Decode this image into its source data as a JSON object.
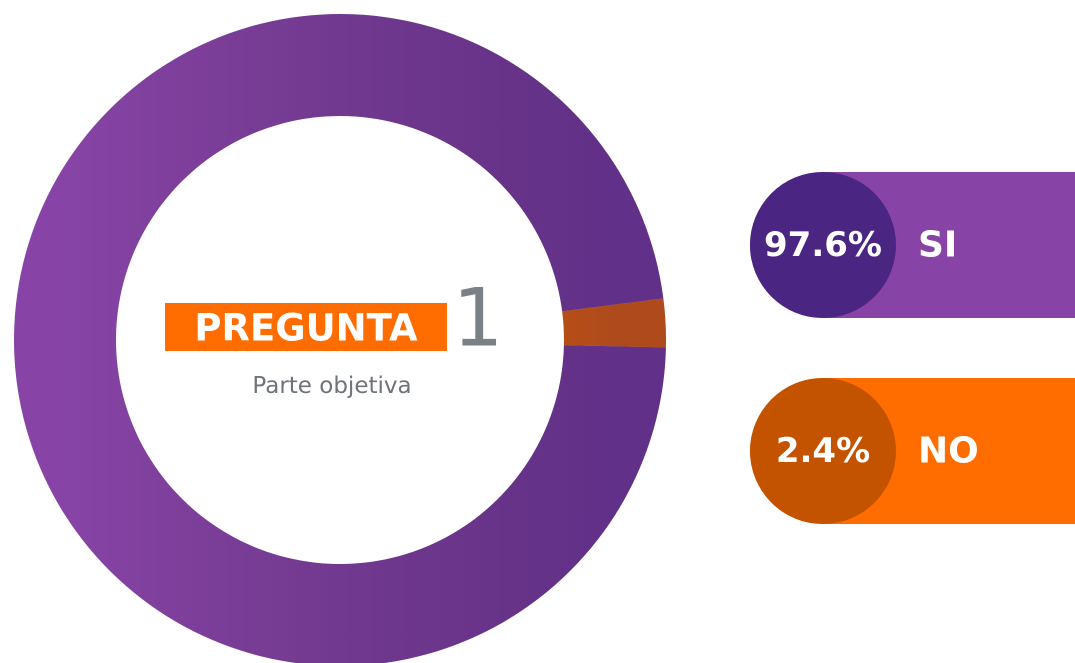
{
  "chart_data": {
    "type": "pie",
    "donut": true,
    "title": "PREGUNTA",
    "title_number": "1",
    "subtitle": "Parte objetiva",
    "categories": [
      "SI",
      "NO"
    ],
    "values": [
      97.6,
      2.4
    ],
    "value_labels": [
      "97.6%",
      "2.4%"
    ],
    "colors": [
      "#8744a6",
      "#ff6d00"
    ],
    "badge_colors": [
      "#4a2581",
      "#c45300"
    ]
  }
}
